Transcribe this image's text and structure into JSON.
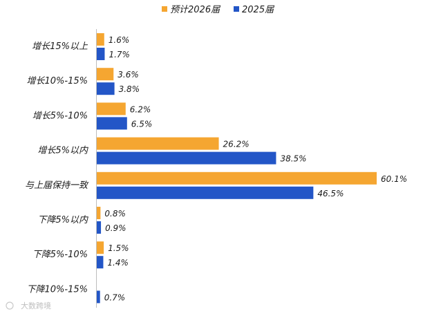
{
  "chart_data": {
    "type": "bar",
    "orientation": "horizontal",
    "categories": [
      "增长15%以上",
      "增长10%-15%",
      "增长5%-10%",
      "增长5%以内",
      "与上届保持一致",
      "下降5%以内",
      "下降5%-10%",
      "下降10%-15%"
    ],
    "series": [
      {
        "name": "预计2026届",
        "color": "#F5A631",
        "values": [
          1.6,
          3.6,
          6.2,
          26.2,
          60.1,
          0.8,
          1.5,
          null
        ],
        "labels": [
          "1.6%",
          "3.6%",
          "6.2%",
          "26.2%",
          "60.1%",
          "0.8%",
          "1.5%",
          ""
        ]
      },
      {
        "name": "2025届",
        "color": "#2356C7",
        "values": [
          1.7,
          3.8,
          6.5,
          38.5,
          46.5,
          0.9,
          1.4,
          0.7
        ],
        "labels": [
          "1.7%",
          "3.8%",
          "6.5%",
          "38.5%",
          "46.5%",
          "0.9%",
          "1.4%",
          "0.7%"
        ]
      }
    ],
    "legend_position": "top-right",
    "grid": false,
    "xlim": [
      0,
      60.1
    ]
  },
  "watermark": "大数跨境"
}
